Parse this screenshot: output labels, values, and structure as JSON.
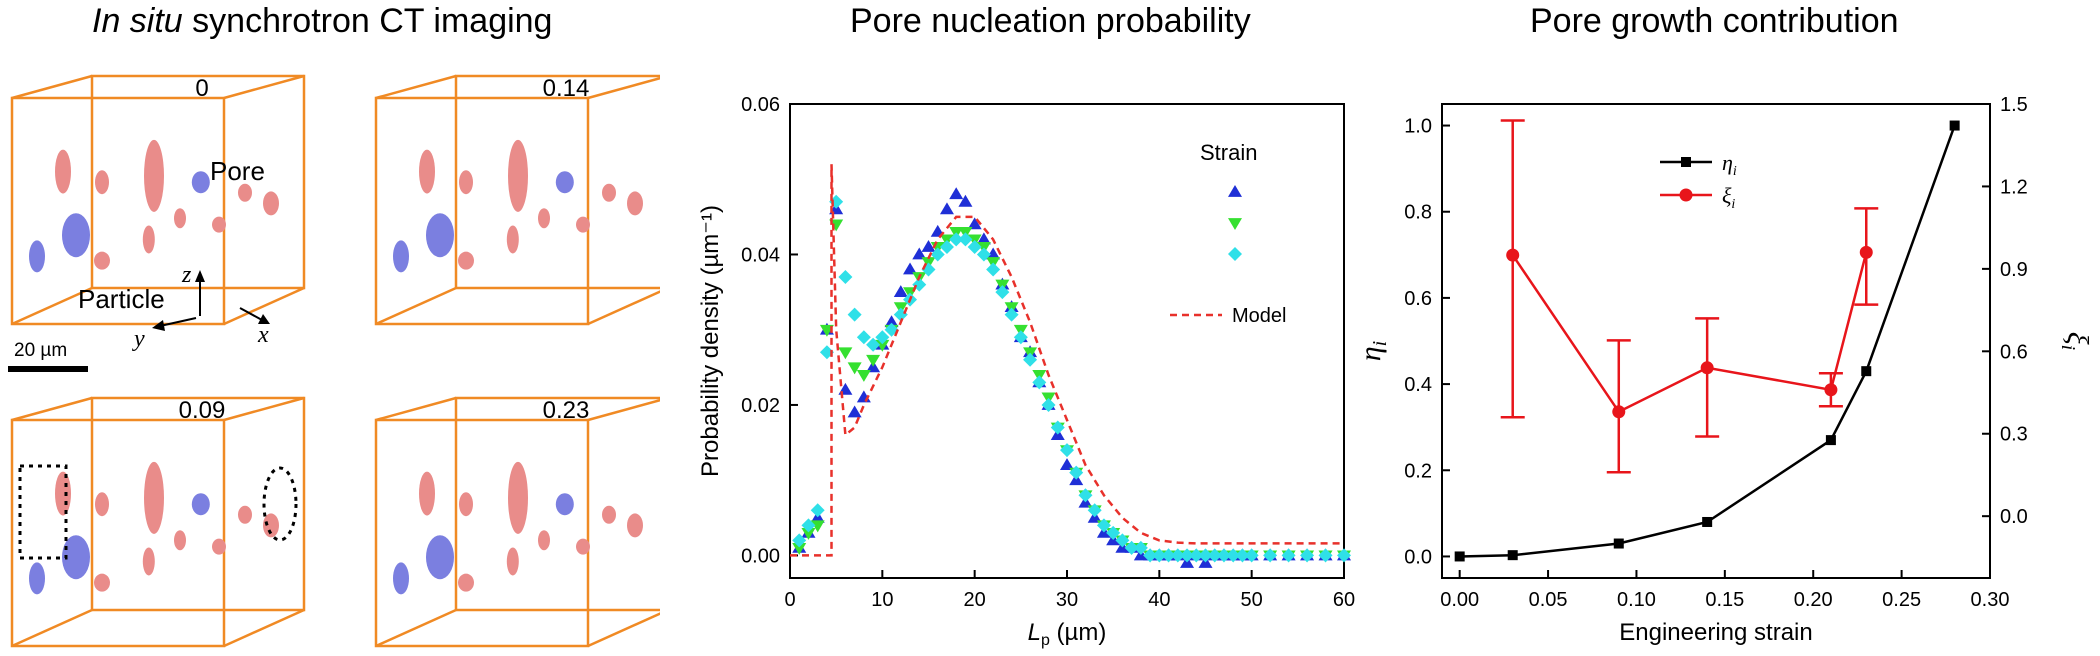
{
  "panel_a": {
    "title_italic": "In situ",
    "title_rest": " synchrotron CT imaging",
    "scale_bar_label": "20 µm",
    "labels": {
      "pore": "Pore",
      "particle": "Particle",
      "z": "z",
      "y": "y",
      "x": "x"
    },
    "boxes": [
      {
        "strain": "0"
      },
      {
        "strain": "0.14"
      },
      {
        "strain": "0.09"
      },
      {
        "strain": "0.23"
      }
    ],
    "colors": {
      "box": "#f08a24",
      "pore": "#e98c8a",
      "particle": "#7b7fe0"
    }
  },
  "chart_data": [
    {
      "type": "scatter",
      "title": "Pore nucleation probability",
      "xlabel_main": "L",
      "xlabel_sub": "p",
      "xlabel_unit": " (µm)",
      "ylabel": "Probability density (µm⁻¹)",
      "xlim": [
        0,
        60
      ],
      "ylim": [
        -0.003,
        0.06
      ],
      "xticks": [
        "0",
        "10",
        "20",
        "30",
        "40",
        "50",
        "60"
      ],
      "yticks": [
        "0.00",
        "0.02",
        "0.04",
        "0.06"
      ],
      "legend_title": "Strain",
      "legend_position": "top-right",
      "series": [
        {
          "marker": "triangle-up",
          "color": "#1f2fd6",
          "x": [
            1,
            2,
            3,
            4,
            5,
            6,
            7,
            8,
            9,
            10,
            11,
            12,
            13,
            14,
            15,
            16,
            17,
            18,
            19,
            20,
            21,
            22,
            23,
            24,
            25,
            26,
            27,
            28,
            29,
            30,
            31,
            32,
            33,
            34,
            35,
            36,
            37,
            38,
            39,
            40,
            41,
            42,
            43,
            44,
            45,
            46,
            47,
            48,
            49,
            50,
            52,
            54,
            56,
            58,
            60
          ],
          "y": [
            0.001,
            0.003,
            0.005,
            0.03,
            0.046,
            0.022,
            0.019,
            0.021,
            0.025,
            0.028,
            0.031,
            0.035,
            0.038,
            0.04,
            0.041,
            0.043,
            0.046,
            0.048,
            0.047,
            0.044,
            0.042,
            0.04,
            0.036,
            0.033,
            0.029,
            0.027,
            0.023,
            0.02,
            0.016,
            0.012,
            0.01,
            0.007,
            0.005,
            0.003,
            0.002,
            0.001,
            0.001,
            0.0,
            0.0,
            0.0,
            0.0,
            0.0,
            -0.001,
            0.0,
            -0.001,
            0.0,
            0.0,
            0.0,
            0.0,
            0.0,
            0.0,
            0.0,
            0.0,
            0.0,
            0.0
          ]
        },
        {
          "marker": "triangle-down",
          "color": "#35e030",
          "x": [
            1,
            2,
            3,
            4,
            5,
            6,
            7,
            8,
            9,
            10,
            11,
            12,
            13,
            14,
            15,
            16,
            17,
            18,
            19,
            20,
            21,
            22,
            23,
            24,
            25,
            26,
            27,
            28,
            29,
            30,
            31,
            32,
            33,
            34,
            35,
            36,
            37,
            38,
            39,
            40,
            41,
            42,
            43,
            44,
            45,
            46,
            47,
            48,
            49,
            50,
            52,
            54,
            56,
            58,
            60
          ],
          "y": [
            0.001,
            0.003,
            0.004,
            0.03,
            0.044,
            0.027,
            0.025,
            0.024,
            0.026,
            0.028,
            0.03,
            0.033,
            0.035,
            0.037,
            0.039,
            0.041,
            0.042,
            0.043,
            0.043,
            0.042,
            0.041,
            0.039,
            0.036,
            0.033,
            0.03,
            0.027,
            0.024,
            0.021,
            0.017,
            0.014,
            0.011,
            0.008,
            0.006,
            0.004,
            0.003,
            0.002,
            0.001,
            0.001,
            0.0,
            0.0,
            0.0,
            0.0,
            0.0,
            0.0,
            0.0,
            0.0,
            0.0,
            0.0,
            0.0,
            0.0,
            0.0,
            0.0,
            0.0,
            0.0,
            0.0
          ]
        },
        {
          "marker": "diamond",
          "color": "#2fe0e8",
          "x": [
            1,
            2,
            3,
            4,
            5,
            6,
            7,
            8,
            9,
            10,
            11,
            12,
            13,
            14,
            15,
            16,
            17,
            18,
            19,
            20,
            21,
            22,
            23,
            24,
            25,
            26,
            27,
            28,
            29,
            30,
            31,
            32,
            33,
            34,
            35,
            36,
            37,
            38,
            39,
            40,
            41,
            42,
            43,
            44,
            45,
            46,
            47,
            48,
            49,
            50,
            52,
            54,
            56,
            58,
            60
          ],
          "y": [
            0.002,
            0.004,
            0.006,
            0.027,
            0.047,
            0.037,
            0.032,
            0.029,
            0.028,
            0.029,
            0.03,
            0.032,
            0.034,
            0.036,
            0.038,
            0.04,
            0.041,
            0.042,
            0.042,
            0.041,
            0.04,
            0.038,
            0.035,
            0.032,
            0.029,
            0.026,
            0.023,
            0.02,
            0.017,
            0.014,
            0.011,
            0.008,
            0.006,
            0.004,
            0.003,
            0.002,
            0.001,
            0.001,
            0.0,
            0.0,
            0.0,
            0.0,
            0.0,
            0.0,
            0.0,
            0.0,
            0.0,
            0.0,
            0.0,
            0.0,
            0.0,
            0.0,
            0.0,
            0.0,
            0.0
          ]
        },
        {
          "name": "Model",
          "marker": "dashed-line",
          "color": "#e8312b",
          "x": [
            0,
            4,
            4.5,
            4.5,
            5,
            6,
            7,
            8,
            10,
            12,
            14,
            16,
            18,
            19,
            20,
            22,
            24,
            26,
            28,
            30,
            32,
            34,
            36,
            38,
            40,
            42,
            44,
            46,
            50,
            55,
            60
          ],
          "y": [
            0,
            0,
            0,
            0.052,
            0.03,
            0.016,
            0.017,
            0.02,
            0.025,
            0.031,
            0.037,
            0.042,
            0.045,
            0.045,
            0.045,
            0.042,
            0.037,
            0.031,
            0.024,
            0.018,
            0.012,
            0.008,
            0.005,
            0.003,
            0.002,
            0.0017,
            0.0016,
            0.0016,
            0.0016,
            0.0016,
            0.0016
          ]
        }
      ]
    },
    {
      "type": "line",
      "title": "Pore growth contribution",
      "xlabel": "Engineering strain",
      "ylabel_left": "η",
      "ylabel_left_sub": "i",
      "ylabel_right": "ξ",
      "ylabel_right_sub": "i",
      "xlim": [
        -0.01,
        0.3
      ],
      "ylim_left": [
        -0.05,
        1.05
      ],
      "ylim_right": [
        -0.225,
        1.5
      ],
      "xticks": [
        "0.00",
        "0.05",
        "0.10",
        "0.15",
        "0.20",
        "0.25",
        "0.30"
      ],
      "yticks_left": [
        "0.0",
        "0.2",
        "0.4",
        "0.6",
        "0.8",
        "1.0"
      ],
      "yticks_right": [
        "0.0",
        "0.3",
        "0.6",
        "0.9",
        "1.2",
        "1.5"
      ],
      "legend_position": "top-left",
      "series": [
        {
          "name": "η",
          "name_sub": "i",
          "axis": "left",
          "marker": "square",
          "color": "#000000",
          "x": [
            0.0,
            0.03,
            0.09,
            0.14,
            0.21,
            0.23,
            0.28
          ],
          "y": [
            0.0,
            0.003,
            0.03,
            0.08,
            0.27,
            0.43,
            1.0
          ]
        },
        {
          "name": "ξ",
          "name_sub": "i",
          "axis": "right",
          "marker": "circle",
          "color": "#e8151b",
          "x": [
            0.03,
            0.09,
            0.14,
            0.21,
            0.23
          ],
          "y": [
            0.95,
            0.38,
            0.54,
            0.46,
            0.96
          ],
          "err_low": [
            0.36,
            0.16,
            0.29,
            0.4,
            0.77
          ],
          "err_high": [
            1.44,
            0.64,
            0.72,
            0.52,
            1.12
          ]
        }
      ]
    }
  ]
}
